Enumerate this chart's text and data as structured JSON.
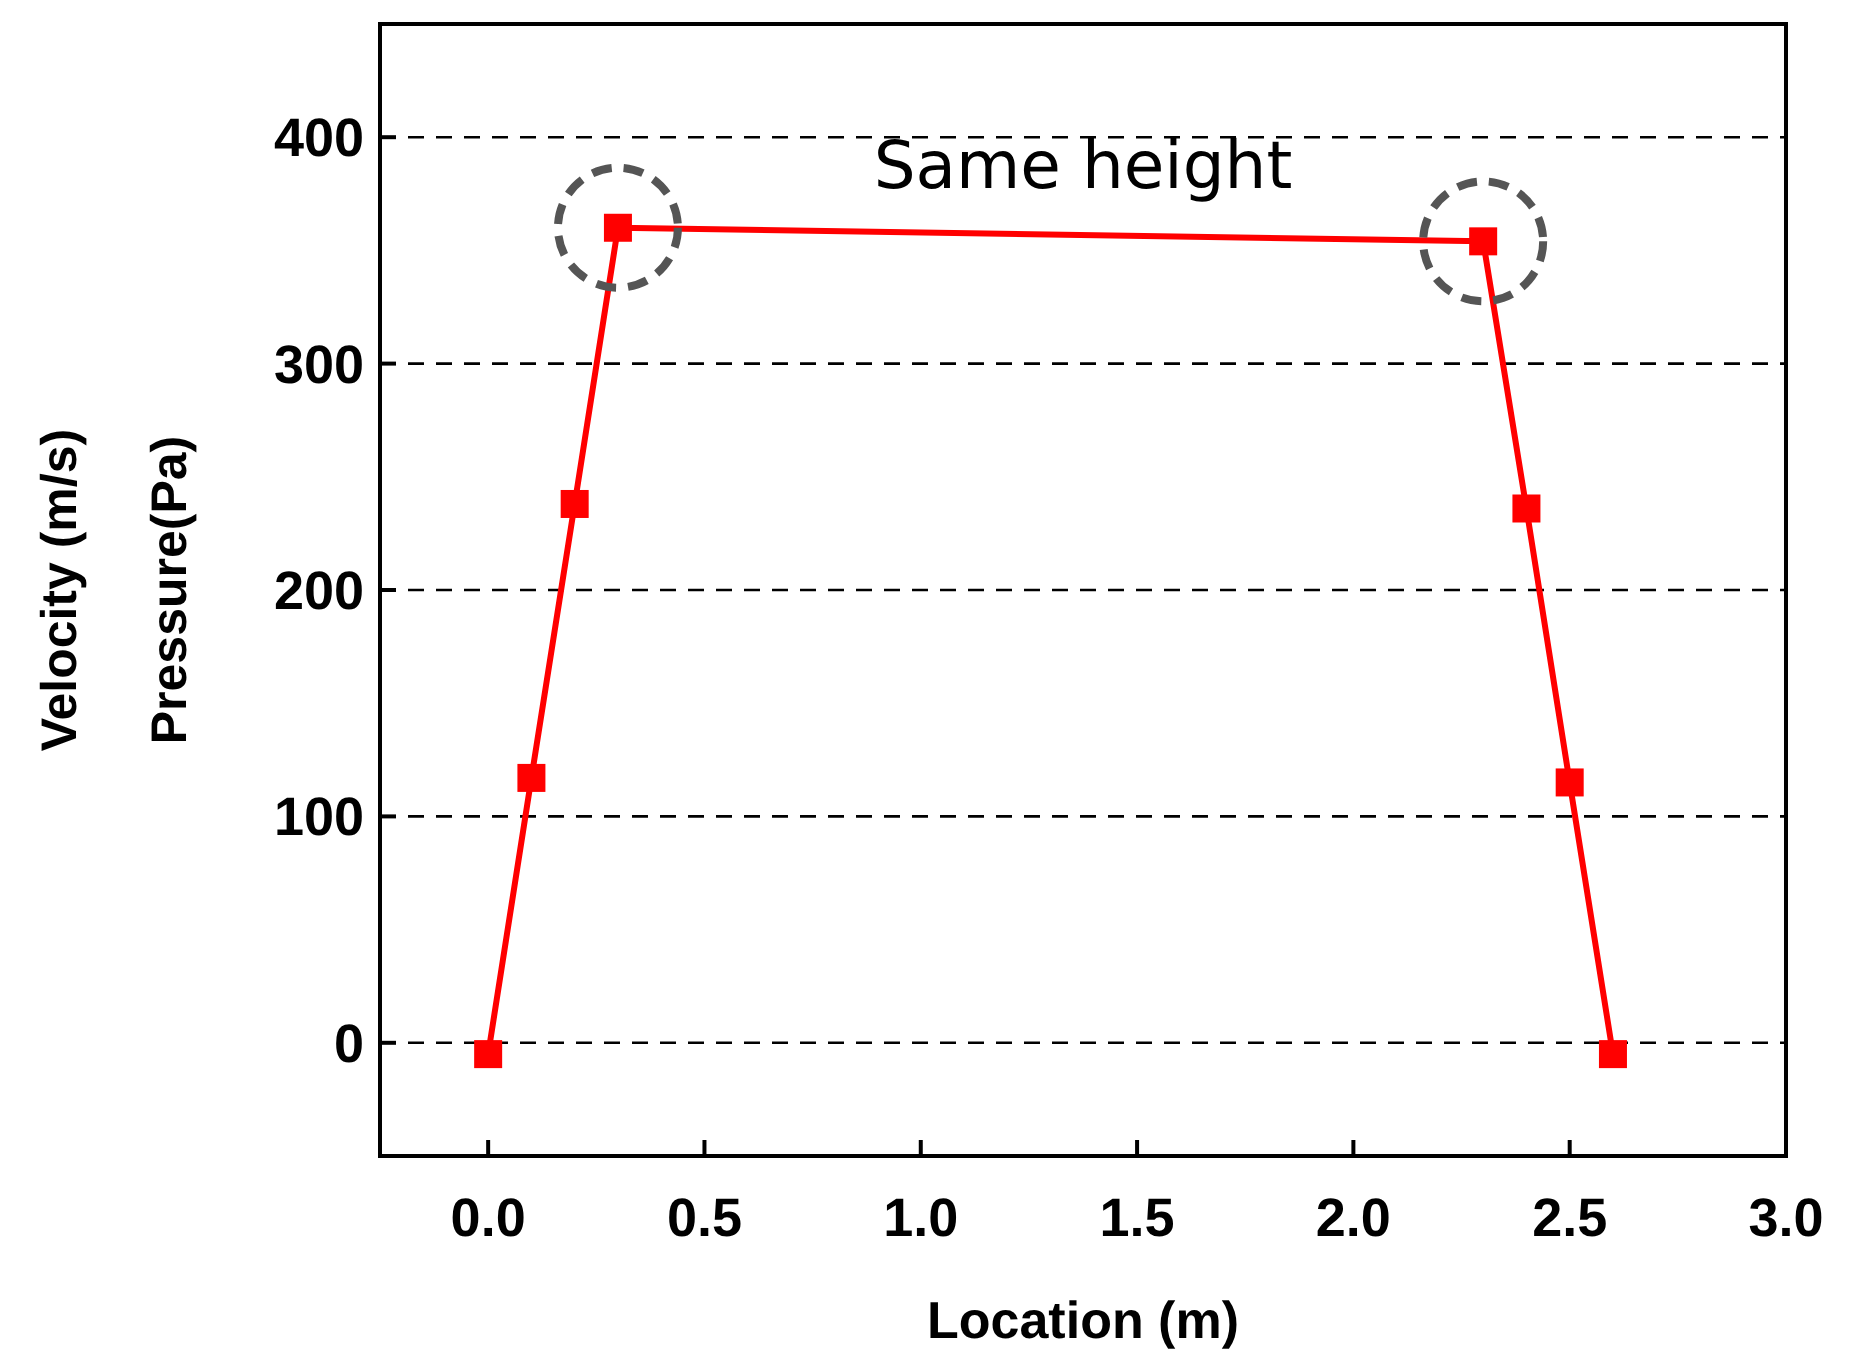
{
  "chart_data": {
    "type": "line",
    "xlabel": "Location (m)",
    "ylabel": "Velocity (m/s)\nPressure(Pa)",
    "x": [
      0,
      0.1,
      0.2,
      0.3,
      2.3,
      2.4,
      2.5,
      2.6
    ],
    "series": [
      {
        "color": "#ff0000",
        "values": [
          -5,
          117,
          238,
          360,
          354,
          236,
          115,
          -5
        ]
      }
    ],
    "xlim": [
      -0.25,
      3.0
    ],
    "xticks": [
      {
        "value": 0,
        "label": "0.0"
      },
      {
        "value": 0.5,
        "label": "0.5"
      },
      {
        "value": 1,
        "label": "1.0"
      },
      {
        "value": 1.5,
        "label": "1.5"
      },
      {
        "value": 2,
        "label": "2.0"
      },
      {
        "value": 2.5,
        "label": "2.5"
      },
      {
        "value": 3,
        "label": "3.0"
      }
    ],
    "ylim": [
      -50,
      450
    ],
    "yticks": [
      0,
      100,
      200,
      300,
      400
    ],
    "grid": "y",
    "marker": "square",
    "line_style": "solid",
    "annotations": [
      "Same height"
    ]
  }
}
